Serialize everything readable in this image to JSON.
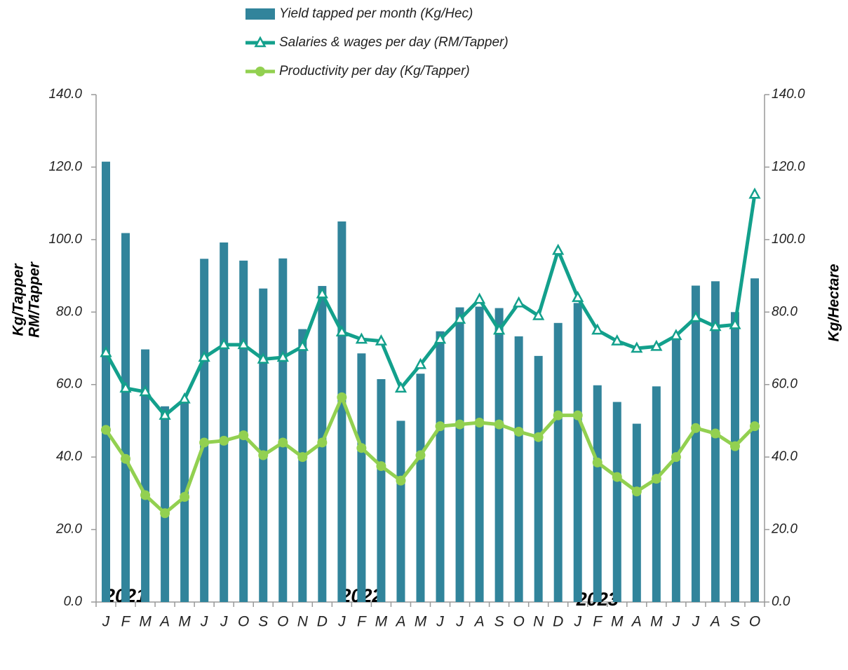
{
  "chart_data": {
    "type": "combo",
    "categories": [
      "J",
      "F",
      "M",
      "A",
      "M",
      "J",
      "J",
      "O",
      "S",
      "O",
      "N",
      "D",
      "J",
      "F",
      "M",
      "A",
      "M",
      "J",
      "J",
      "A",
      "S",
      "O",
      "N",
      "D",
      "J",
      "F",
      "M",
      "A",
      "M",
      "J",
      "J",
      "A",
      "S",
      "O"
    ],
    "year_labels": [
      "2021",
      "2022",
      "2023"
    ],
    "ylabel": [
      "Kg/Tapper",
      "RM/Tapper"
    ],
    "y2label": "Kg/Hectare",
    "ylim": [
      0,
      140
    ],
    "yticks": [
      {
        "value": 0,
        "label": "0.0"
      },
      {
        "value": 20,
        "label": "20.0"
      },
      {
        "value": 40,
        "label": "40.0"
      },
      {
        "value": 60,
        "label": "60.0"
      },
      {
        "value": 80,
        "label": "80.0"
      },
      {
        "value": 100,
        "label": "100.0"
      },
      {
        "value": 120,
        "label": "120.0"
      },
      {
        "value": 140,
        "label": "140.0"
      }
    ],
    "y2lim": [
      0,
      140
    ],
    "y2ticks": [
      {
        "value": 0,
        "label": "0.0"
      },
      {
        "value": 20,
        "label": "20.0"
      },
      {
        "value": 40,
        "label": "40.0"
      },
      {
        "value": 60,
        "label": "60.0"
      },
      {
        "value": 80,
        "label": "80.0"
      },
      {
        "value": 100,
        "label": "100.0"
      },
      {
        "value": 120,
        "label": "120.0"
      },
      {
        "value": 140,
        "label": "140.0"
      }
    ],
    "series": [
      {
        "name": "Yield tapped per month (Kg/Hec)",
        "type": "bar",
        "axis": "y2",
        "color": "#31849b",
        "values": [
          121.5,
          101.8,
          69.7,
          54,
          55,
          94.7,
          99.2,
          94.2,
          86.5,
          94.8,
          75.3,
          87.2,
          105,
          68.6,
          61.5,
          50,
          63,
          74.7,
          81.3,
          81.5,
          81.1,
          73.3,
          67.9,
          77,
          82.5,
          59.8,
          55.2,
          49.2,
          59.5,
          72.5,
          87.3,
          88.5,
          80,
          89.3
        ]
      },
      {
        "name": "Salaries & wages per day (RM/Tapper)",
        "type": "line",
        "marker": "triangle",
        "color": "#13a08c",
        "values": [
          68.8,
          59,
          58,
          51.5,
          56,
          67.5,
          71,
          71,
          67,
          67.5,
          70.5,
          85,
          74.5,
          72.5,
          72,
          59,
          65.5,
          72.5,
          78,
          83.5,
          75,
          82.5,
          79,
          97,
          84,
          75,
          72,
          70,
          70.5,
          73.5,
          78.5,
          76,
          76.5,
          112.5
        ]
      },
      {
        "name": "Productivity per day (Kg/Tapper)",
        "type": "line",
        "marker": "circle",
        "color": "#92d050",
        "values": [
          47.5,
          39.5,
          29.5,
          24.5,
          29,
          44,
          44.5,
          46,
          40.5,
          44,
          40,
          44,
          56.5,
          42.5,
          37.5,
          33.5,
          40.5,
          48.5,
          49,
          49.5,
          49,
          47,
          45.5,
          51.5,
          51.5,
          38.5,
          34.5,
          30.5,
          34,
          40,
          48,
          46.5,
          43,
          48.5
        ]
      }
    ]
  }
}
